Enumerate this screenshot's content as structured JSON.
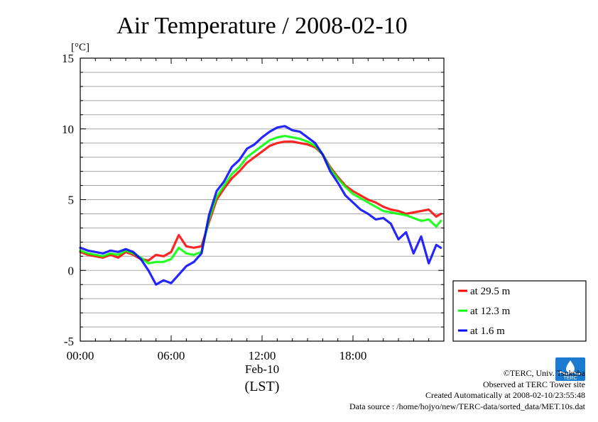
{
  "chart_data": {
    "type": "line",
    "title": "Air Temperature / 2008-02-10",
    "yunit": "[°C]",
    "xlabel_date": "Feb-10",
    "xlabel": "(LST)",
    "ylim": [
      -5,
      15
    ],
    "xlim_hours": [
      0,
      24
    ],
    "yticks": [
      "15",
      "10",
      "5",
      "0",
      "-5"
    ],
    "ytick_values": [
      15,
      10,
      5,
      0,
      -5
    ],
    "xticks": [
      "00:00",
      "06:00",
      "12:00",
      "18:00"
    ],
    "xtick_values_hours": [
      0,
      6,
      12,
      18
    ],
    "grid": true,
    "legend_position": "right",
    "x_hours": [
      0,
      0.5,
      1,
      1.5,
      2,
      2.5,
      3,
      3.5,
      4,
      4.5,
      5,
      5.5,
      6,
      6.5,
      7,
      7.5,
      8,
      8.5,
      9,
      9.5,
      10,
      10.5,
      11,
      11.5,
      12,
      12.5,
      13,
      13.5,
      14,
      14.5,
      15,
      15.5,
      16,
      16.5,
      17,
      17.5,
      18,
      18.5,
      19,
      19.5,
      20,
      20.5,
      21,
      21.5,
      22,
      22.5,
      23,
      23.5,
      23.8
    ],
    "series": [
      {
        "name": "at 29.5 m",
        "color": "#ff0000",
        "values": [
          1.3,
          1.1,
          1.0,
          0.9,
          1.1,
          0.9,
          1.3,
          1.1,
          0.8,
          0.7,
          1.1,
          1.0,
          1.3,
          2.5,
          1.7,
          1.6,
          1.7,
          3.4,
          5.0,
          5.8,
          6.5,
          7.0,
          7.6,
          8.0,
          8.4,
          8.8,
          9.0,
          9.1,
          9.1,
          9.0,
          8.9,
          8.7,
          8.2,
          7.3,
          6.6,
          6.0,
          5.6,
          5.3,
          5.0,
          4.8,
          4.5,
          4.3,
          4.2,
          4.0,
          4.1,
          4.2,
          4.3,
          3.8,
          4.0
        ]
      },
      {
        "name": "at 12.3 m",
        "color": "#00ff00",
        "values": [
          1.4,
          1.2,
          1.1,
          1.0,
          1.2,
          1.1,
          1.4,
          1.2,
          0.9,
          0.5,
          0.6,
          0.6,
          0.8,
          1.6,
          1.2,
          1.1,
          1.3,
          3.6,
          5.2,
          6.0,
          6.8,
          7.3,
          8.0,
          8.4,
          8.8,
          9.2,
          9.4,
          9.5,
          9.4,
          9.3,
          9.1,
          8.8,
          8.2,
          7.2,
          6.5,
          5.9,
          5.4,
          5.1,
          4.8,
          4.5,
          4.2,
          4.1,
          4.0,
          3.9,
          3.7,
          3.5,
          3.6,
          3.1,
          3.5
        ]
      },
      {
        "name": "at 1.6 m",
        "color": "#0000ff",
        "values": [
          1.6,
          1.4,
          1.3,
          1.2,
          1.4,
          1.3,
          1.5,
          1.3,
          0.8,
          0.0,
          -1.0,
          -0.7,
          -0.9,
          -0.3,
          0.3,
          0.6,
          1.2,
          3.9,
          5.6,
          6.3,
          7.3,
          7.8,
          8.6,
          8.9,
          9.4,
          9.8,
          10.1,
          10.2,
          9.9,
          9.8,
          9.4,
          9.0,
          8.2,
          7.0,
          6.2,
          5.3,
          4.8,
          4.3,
          4.0,
          3.6,
          3.7,
          3.3,
          2.2,
          2.7,
          1.2,
          2.4,
          0.5,
          1.8,
          1.6
        ]
      }
    ]
  },
  "footer": {
    "credit": "©TERC, Univ. Tsukuba",
    "observed": "Observed at TERC Tower site",
    "created": "Created Automatically at 2008-02-10/23:55:48",
    "source": "Data source : /home/hojyo/new/TERC-data/sorted_data/MET.10s.dat"
  },
  "logo": {
    "text": "TERC",
    "color": "#1a7ad0"
  }
}
